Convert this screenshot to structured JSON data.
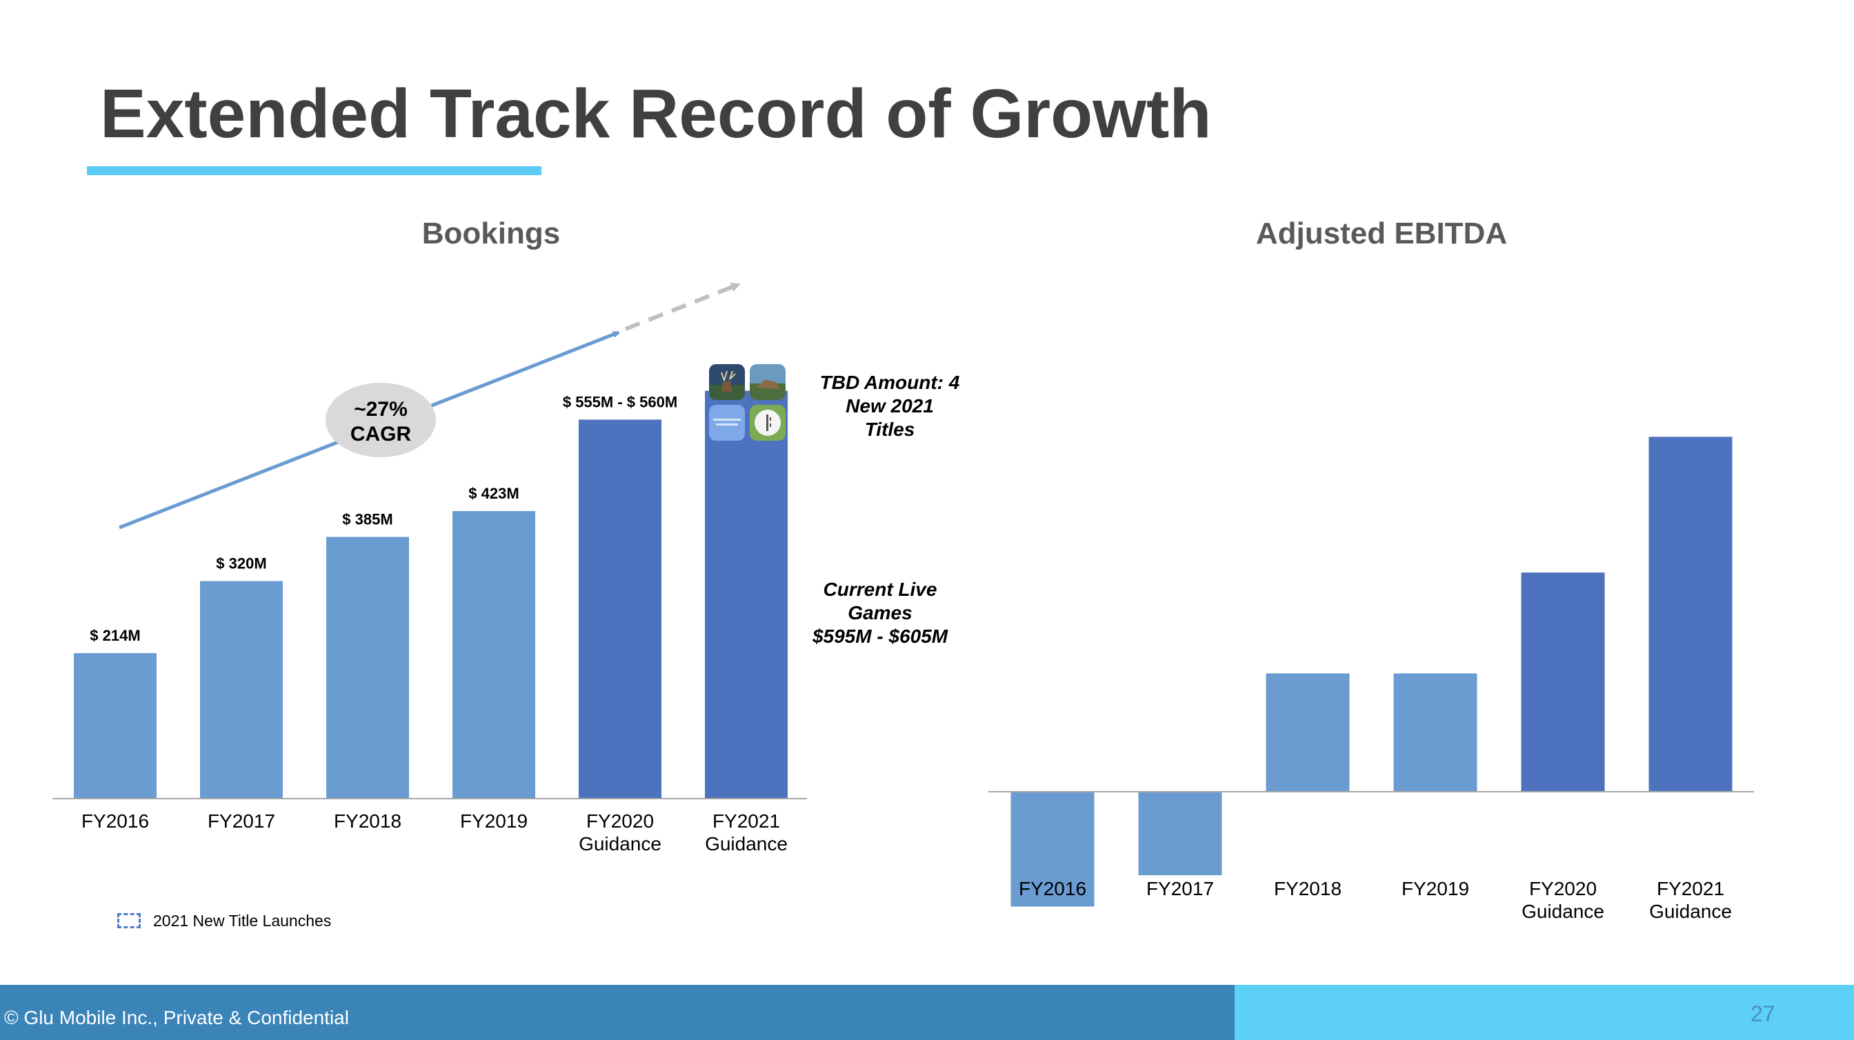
{
  "slide": {
    "title": "Extended Track Record of Growth",
    "footer": "© Glu Mobile Inc., Private & Confidential",
    "page_number": "27",
    "colors": {
      "title": "#404040",
      "title_bar": "#5BCBF5",
      "bar_light": "#6A9BD1",
      "bar_dark": "#4E73BE",
      "trend_arrow": "#6A9BD1",
      "projection_arrow": "#BFBFBF",
      "footer_left": "#3A84B8",
      "footer_right": "#5DD0F8"
    },
    "cagr_bubble": {
      "line1": "~27%",
      "line2": "CAGR"
    },
    "notes": {
      "tbd": [
        "TBD Amount: 4",
        "New 2021",
        "Titles"
      ],
      "current": [
        "Current Live",
        "Games",
        "$595M - $605M"
      ]
    },
    "legend": {
      "label": "2021 New Title Launches"
    },
    "app_icons": [
      "deer-hunter-icon",
      "hunting-landscape-icon",
      "covet-moments-icon",
      "white-app-icon"
    ]
  },
  "chart_data": [
    {
      "type": "bar",
      "title": "Bookings",
      "categories": [
        [
          "FY2016"
        ],
        [
          "FY2017"
        ],
        [
          "FY2018"
        ],
        [
          "FY2019"
        ],
        [
          "FY2020",
          "Guidance"
        ],
        [
          "FY2021",
          "Guidance"
        ]
      ],
      "values": [
        214,
        320,
        385,
        423,
        557.5,
        600
      ],
      "data_labels": [
        "$ 214M",
        "$ 320M",
        "$ 385M",
        "$ 423M",
        "$ 555M - $ 560M",
        ""
      ],
      "bar_colors": [
        "#6A9BD1",
        "#6A9BD1",
        "#6A9BD1",
        "#6A9BD1",
        "#4E73BE",
        "#4E73BE"
      ],
      "ylim": [
        0,
        700
      ],
      "grid": false,
      "legend": "bottom-left"
    },
    {
      "type": "bar",
      "title": "Adjusted EBITDA",
      "categories": [
        [
          "FY2016"
        ],
        [
          "FY2017"
        ],
        [
          "FY2018"
        ],
        [
          "FY2019"
        ],
        [
          "FY2020",
          "Guidance"
        ],
        [
          "FY2021",
          "Guidance"
        ]
      ],
      "values": [
        -33,
        -24,
        34,
        34,
        63,
        102
      ],
      "bar_colors": [
        "#6A9BD1",
        "#6A9BD1",
        "#6A9BD1",
        "#6A9BD1",
        "#4E73BE",
        "#4E73BE"
      ],
      "ylim": [
        -40,
        110
      ],
      "grid": false
    }
  ]
}
